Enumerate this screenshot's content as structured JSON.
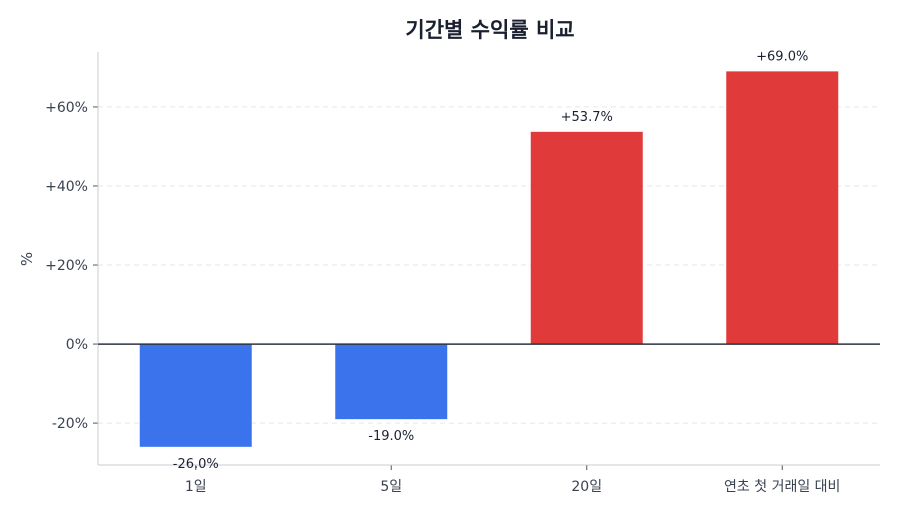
{
  "chart_data": {
    "type": "bar",
    "title": "기간별 수익률 비교",
    "xlabel": "",
    "ylabel": "%",
    "categories": [
      "1일",
      "5일",
      "20일",
      "연초 첫 거래일 대비"
    ],
    "values": [
      -26.0,
      -19.0,
      53.7,
      69.0
    ],
    "data_labels": [
      "-26.0%",
      "-19.0%",
      "+53.7%",
      "+69.0%"
    ],
    "ylim": [
      -30.6,
      73.9
    ],
    "yticks": [
      -20,
      0,
      20,
      40,
      60
    ],
    "ytick_labels": [
      "-20%",
      "0%",
      "+20%",
      "+40%",
      "+60%"
    ],
    "grid": "horizontal dashed",
    "colors": {
      "negative": "#3b73ec",
      "positive": "#e03a3a",
      "zero_line": "#2b3340",
      "grid": "#e3e6ec",
      "axis": "#c9ccd6"
    }
  }
}
